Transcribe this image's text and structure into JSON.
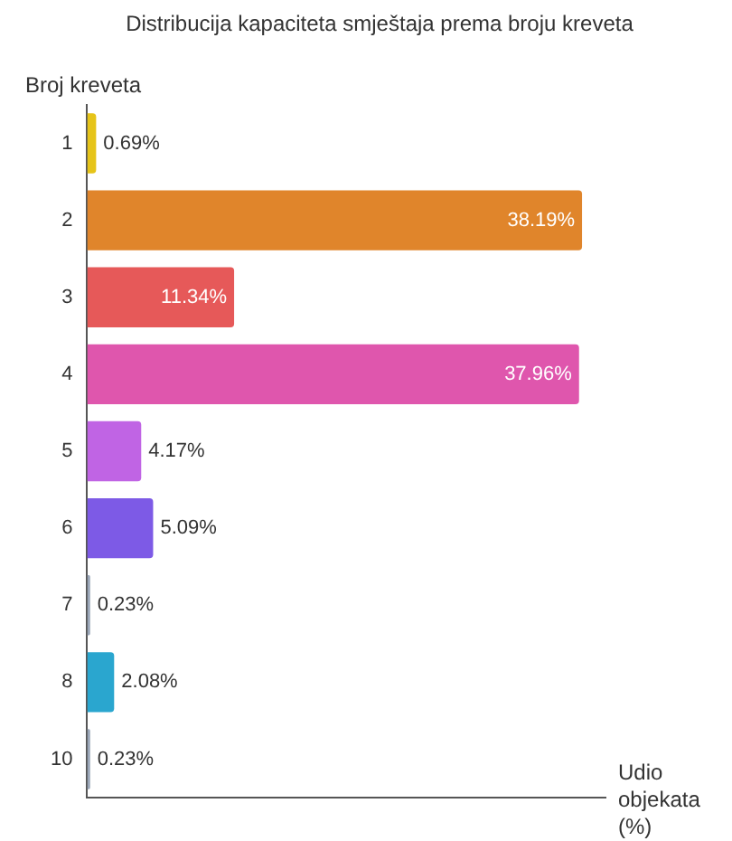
{
  "chart_data": {
    "type": "bar",
    "orientation": "horizontal",
    "title": "Distribucija kapaciteta smještaja prema broju kreveta",
    "ylabel": "Broj kreveta",
    "xlabel": "Udio objekata (%)",
    "categories": [
      "1",
      "2",
      "3",
      "4",
      "5",
      "6",
      "7",
      "8",
      "10"
    ],
    "values": [
      0.69,
      38.19,
      11.34,
      37.96,
      4.17,
      5.09,
      0.23,
      2.08,
      0.23
    ],
    "colors": [
      "#e6c419",
      "#e0852b",
      "#e65959",
      "#df56ad",
      "#c064e4",
      "#7d5ae6",
      "#9aa6b8",
      "#2aa6cf",
      "#9aa6b8"
    ],
    "value_labels": [
      "0.69%",
      "38.19%",
      "11.34%",
      "37.96%",
      "4.17%",
      "5.09%",
      "0.23%",
      "2.08%",
      "0.23%"
    ],
    "tick_labels": "y",
    "grid": false,
    "legend": false
  }
}
